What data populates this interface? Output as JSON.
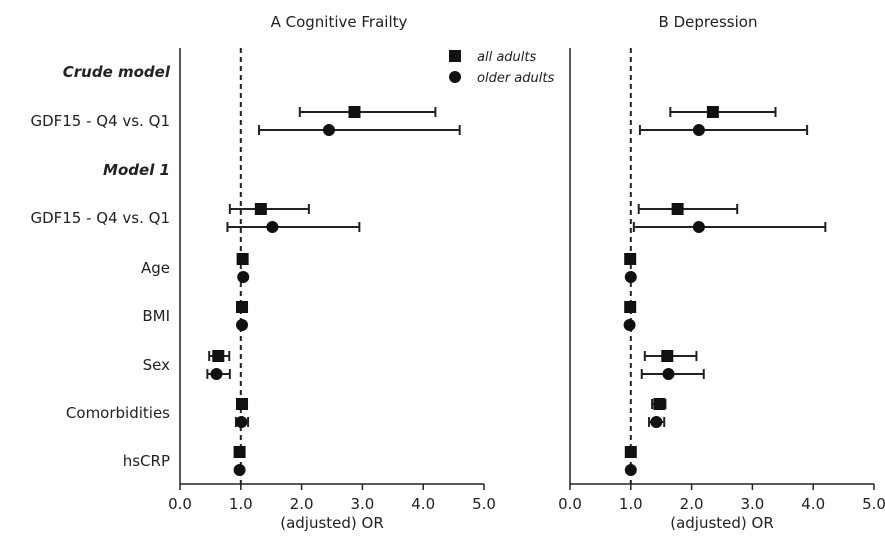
{
  "chart_data": {
    "type": "forest",
    "legend": {
      "placement": "top-right of panel A",
      "entries": [
        {
          "name": "all adults",
          "marker": "square"
        },
        {
          "name": "older adults",
          "marker": "circle"
        }
      ]
    },
    "row_labels": [
      {
        "text": "Crude model",
        "style": "bold-italic"
      },
      {
        "text": "GDF15 - Q4 vs. Q1",
        "style": "normal"
      },
      {
        "text": "Model 1",
        "style": "bold-italic"
      },
      {
        "text": "GDF15 - Q4 vs. Q1",
        "style": "normal"
      },
      {
        "text": "Age",
        "style": "normal"
      },
      {
        "text": "BMI",
        "style": "normal"
      },
      {
        "text": "Sex",
        "style": "normal"
      },
      {
        "text": "Comorbidities",
        "style": "normal"
      },
      {
        "text": "hsCRP",
        "style": "normal"
      }
    ],
    "reference_value": 1.0,
    "xlim": [
      0,
      5
    ],
    "xticks": [
      "0.0",
      "1.0",
      "2.0",
      "3.0",
      "4.0",
      "5.0"
    ],
    "xlabel": "(adjusted) OR",
    "panels": [
      {
        "title": "A  Cognitive Frailty",
        "series": [
          {
            "name": "all adults",
            "points": [
              {
                "row": 1,
                "or": 2.87,
                "lo": 1.97,
                "hi": 4.2
              },
              {
                "row": 3,
                "or": 1.33,
                "lo": 0.82,
                "hi": 2.12
              },
              {
                "row": 4,
                "or": 1.03,
                "lo": 1.0,
                "hi": 1.06
              },
              {
                "row": 5,
                "or": 1.02,
                "lo": 0.99,
                "hi": 1.05
              },
              {
                "row": 6,
                "or": 0.63,
                "lo": 0.48,
                "hi": 0.81
              },
              {
                "row": 7,
                "or": 1.02,
                "lo": 0.94,
                "hi": 1.1
              },
              {
                "row": 8,
                "or": 0.98,
                "lo": 0.95,
                "hi": 1.01
              }
            ]
          },
          {
            "name": "older adults",
            "points": [
              {
                "row": 1,
                "or": 2.45,
                "lo": 1.3,
                "hi": 4.6
              },
              {
                "row": 3,
                "or": 1.52,
                "lo": 0.78,
                "hi": 2.95
              },
              {
                "row": 4,
                "or": 1.04,
                "lo": 1.0,
                "hi": 1.08
              },
              {
                "row": 5,
                "or": 1.02,
                "lo": 0.99,
                "hi": 1.05
              },
              {
                "row": 6,
                "or": 0.6,
                "lo": 0.45,
                "hi": 0.82
              },
              {
                "row": 7,
                "or": 1.01,
                "lo": 0.92,
                "hi": 1.12
              },
              {
                "row": 8,
                "or": 0.98,
                "lo": 0.95,
                "hi": 1.01
              }
            ]
          }
        ]
      },
      {
        "title": "B  Depression",
        "series": [
          {
            "name": "all adults",
            "points": [
              {
                "row": 1,
                "or": 2.35,
                "lo": 1.65,
                "hi": 3.38
              },
              {
                "row": 3,
                "or": 1.77,
                "lo": 1.13,
                "hi": 2.75
              },
              {
                "row": 4,
                "or": 0.99,
                "lo": 0.96,
                "hi": 1.02
              },
              {
                "row": 5,
                "or": 0.99,
                "lo": 0.96,
                "hi": 1.02
              },
              {
                "row": 6,
                "or": 1.6,
                "lo": 1.23,
                "hi": 2.08
              },
              {
                "row": 7,
                "or": 1.47,
                "lo": 1.35,
                "hi": 1.57
              },
              {
                "row": 8,
                "or": 1.0,
                "lo": 0.97,
                "hi": 1.03
              }
            ]
          },
          {
            "name": "older adults",
            "points": [
              {
                "row": 1,
                "or": 2.12,
                "lo": 1.15,
                "hi": 3.9
              },
              {
                "row": 3,
                "or": 2.12,
                "lo": 1.05,
                "hi": 4.2
              },
              {
                "row": 4,
                "or": 1.0,
                "lo": 0.97,
                "hi": 1.03
              },
              {
                "row": 5,
                "or": 0.98,
                "lo": 0.95,
                "hi": 1.01
              },
              {
                "row": 6,
                "or": 1.62,
                "lo": 1.18,
                "hi": 2.2
              },
              {
                "row": 7,
                "or": 1.42,
                "lo": 1.3,
                "hi": 1.55
              },
              {
                "row": 8,
                "or": 1.0,
                "lo": 0.97,
                "hi": 1.03
              }
            ]
          }
        ]
      }
    ]
  }
}
